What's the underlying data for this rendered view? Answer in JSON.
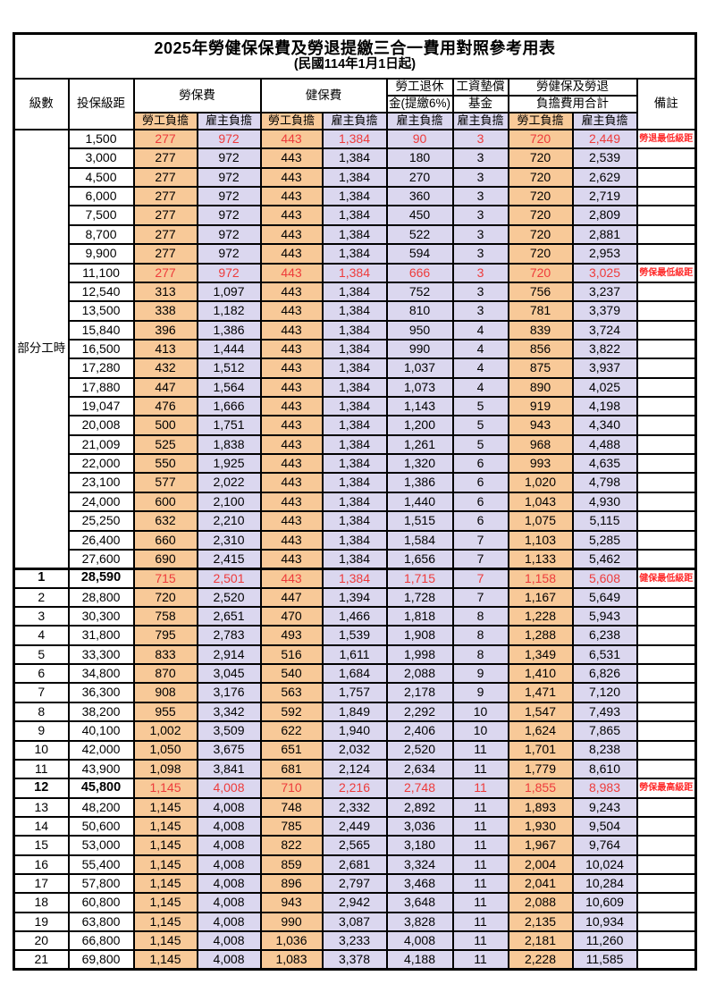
{
  "title": "2025年勞健保保費及勞退提繳三合一費用對照參考用表",
  "subtitle": "(民國114年1月1日起)",
  "colors": {
    "employee_share_fill": "#F8C998",
    "employer_share_fill": "#DBD7EF",
    "highlight_value_text": "#EE3B3B",
    "remark_text": "#FF2B2B",
    "border": "#000000"
  },
  "header": {
    "level": "級數",
    "bracket": "投保級距",
    "labor_insurance": "勞保費",
    "health_insurance": "健保費",
    "pension_line1": "勞工退休",
    "pension_line2": "金(提繳6%)",
    "wage_fund_line1": "工資墊償",
    "wage_fund_line2": "基金",
    "total_line1": "勞健保及勞退",
    "total_line2": "負擔費用合計",
    "remark": "備註",
    "employee": "勞工負擔",
    "employer": "雇主負擔"
  },
  "group_label": "部分工時",
  "group_rowspan": 23,
  "rows": [
    {
      "b": "1,500",
      "v": [
        "277",
        "972",
        "443",
        "1,384",
        "90",
        "3",
        "720",
        "2,449"
      ],
      "rm": "勞退最低級距",
      "red": true
    },
    {
      "b": "3,000",
      "v": [
        "277",
        "972",
        "443",
        "1,384",
        "180",
        "3",
        "720",
        "2,539"
      ]
    },
    {
      "b": "4,500",
      "v": [
        "277",
        "972",
        "443",
        "1,384",
        "270",
        "3",
        "720",
        "2,629"
      ]
    },
    {
      "b": "6,000",
      "v": [
        "277",
        "972",
        "443",
        "1,384",
        "360",
        "3",
        "720",
        "2,719"
      ]
    },
    {
      "b": "7,500",
      "v": [
        "277",
        "972",
        "443",
        "1,384",
        "450",
        "3",
        "720",
        "2,809"
      ]
    },
    {
      "b": "8,700",
      "v": [
        "277",
        "972",
        "443",
        "1,384",
        "522",
        "3",
        "720",
        "2,881"
      ]
    },
    {
      "b": "9,900",
      "v": [
        "277",
        "972",
        "443",
        "1,384",
        "594",
        "3",
        "720",
        "2,953"
      ]
    },
    {
      "b": "11,100",
      "v": [
        "277",
        "972",
        "443",
        "1,384",
        "666",
        "3",
        "720",
        "3,025"
      ],
      "rm": "勞保最低級距",
      "red": true
    },
    {
      "b": "12,540",
      "v": [
        "313",
        "1,097",
        "443",
        "1,384",
        "752",
        "3",
        "756",
        "3,237"
      ]
    },
    {
      "b": "13,500",
      "v": [
        "338",
        "1,182",
        "443",
        "1,384",
        "810",
        "3",
        "781",
        "3,379"
      ]
    },
    {
      "b": "15,840",
      "v": [
        "396",
        "1,386",
        "443",
        "1,384",
        "950",
        "4",
        "839",
        "3,724"
      ]
    },
    {
      "b": "16,500",
      "v": [
        "413",
        "1,444",
        "443",
        "1,384",
        "990",
        "4",
        "856",
        "3,822"
      ]
    },
    {
      "b": "17,280",
      "v": [
        "432",
        "1,512",
        "443",
        "1,384",
        "1,037",
        "4",
        "875",
        "3,937"
      ]
    },
    {
      "b": "17,880",
      "v": [
        "447",
        "1,564",
        "443",
        "1,384",
        "1,073",
        "4",
        "890",
        "4,025"
      ]
    },
    {
      "b": "19,047",
      "v": [
        "476",
        "1,666",
        "443",
        "1,384",
        "1,143",
        "5",
        "919",
        "4,198"
      ]
    },
    {
      "b": "20,008",
      "v": [
        "500",
        "1,751",
        "443",
        "1,384",
        "1,200",
        "5",
        "943",
        "4,340"
      ]
    },
    {
      "b": "21,009",
      "v": [
        "525",
        "1,838",
        "443",
        "1,384",
        "1,261",
        "5",
        "968",
        "4,488"
      ]
    },
    {
      "b": "22,000",
      "v": [
        "550",
        "1,925",
        "443",
        "1,384",
        "1,320",
        "6",
        "993",
        "4,635"
      ]
    },
    {
      "b": "23,100",
      "v": [
        "577",
        "2,022",
        "443",
        "1,384",
        "1,386",
        "6",
        "1,020",
        "4,798"
      ]
    },
    {
      "b": "24,000",
      "v": [
        "600",
        "2,100",
        "443",
        "1,384",
        "1,440",
        "6",
        "1,043",
        "4,930"
      ]
    },
    {
      "b": "25,250",
      "v": [
        "632",
        "2,210",
        "443",
        "1,384",
        "1,515",
        "6",
        "1,075",
        "5,115"
      ]
    },
    {
      "b": "26,400",
      "v": [
        "660",
        "2,310",
        "443",
        "1,384",
        "1,584",
        "7",
        "1,103",
        "5,285"
      ]
    },
    {
      "b": "27,600",
      "v": [
        "690",
        "2,415",
        "443",
        "1,384",
        "1,656",
        "7",
        "1,133",
        "5,462"
      ]
    },
    {
      "lv": "1",
      "b": "28,590",
      "v": [
        "715",
        "2,501",
        "443",
        "1,384",
        "1,715",
        "7",
        "1,158",
        "5,608"
      ],
      "rm": "健保最低級距",
      "red": true,
      "bold": true,
      "thick": true
    },
    {
      "lv": "2",
      "b": "28,800",
      "v": [
        "720",
        "2,520",
        "447",
        "1,394",
        "1,728",
        "7",
        "1,167",
        "5,649"
      ]
    },
    {
      "lv": "3",
      "b": "30,300",
      "v": [
        "758",
        "2,651",
        "470",
        "1,466",
        "1,818",
        "8",
        "1,228",
        "5,943"
      ]
    },
    {
      "lv": "4",
      "b": "31,800",
      "v": [
        "795",
        "2,783",
        "493",
        "1,539",
        "1,908",
        "8",
        "1,288",
        "6,238"
      ]
    },
    {
      "lv": "5",
      "b": "33,300",
      "v": [
        "833",
        "2,914",
        "516",
        "1,611",
        "1,998",
        "8",
        "1,349",
        "6,531"
      ]
    },
    {
      "lv": "6",
      "b": "34,800",
      "v": [
        "870",
        "3,045",
        "540",
        "1,684",
        "2,088",
        "9",
        "1,410",
        "6,826"
      ]
    },
    {
      "lv": "7",
      "b": "36,300",
      "v": [
        "908",
        "3,176",
        "563",
        "1,757",
        "2,178",
        "9",
        "1,471",
        "7,120"
      ]
    },
    {
      "lv": "8",
      "b": "38,200",
      "v": [
        "955",
        "3,342",
        "592",
        "1,849",
        "2,292",
        "10",
        "1,547",
        "7,493"
      ]
    },
    {
      "lv": "9",
      "b": "40,100",
      "v": [
        "1,002",
        "3,509",
        "622",
        "1,940",
        "2,406",
        "10",
        "1,624",
        "7,865"
      ]
    },
    {
      "lv": "10",
      "b": "42,000",
      "v": [
        "1,050",
        "3,675",
        "651",
        "2,032",
        "2,520",
        "11",
        "1,701",
        "8,238"
      ]
    },
    {
      "lv": "11",
      "b": "43,900",
      "v": [
        "1,098",
        "3,841",
        "681",
        "2,124",
        "2,634",
        "11",
        "1,779",
        "8,610"
      ]
    },
    {
      "lv": "12",
      "b": "45,800",
      "v": [
        "1,145",
        "4,008",
        "710",
        "2,216",
        "2,748",
        "11",
        "1,855",
        "8,983"
      ],
      "rm": "勞保最高級距",
      "red": true,
      "bold": true
    },
    {
      "lv": "13",
      "b": "48,200",
      "v": [
        "1,145",
        "4,008",
        "748",
        "2,332",
        "2,892",
        "11",
        "1,893",
        "9,243"
      ]
    },
    {
      "lv": "14",
      "b": "50,600",
      "v": [
        "1,145",
        "4,008",
        "785",
        "2,449",
        "3,036",
        "11",
        "1,930",
        "9,504"
      ]
    },
    {
      "lv": "15",
      "b": "53,000",
      "v": [
        "1,145",
        "4,008",
        "822",
        "2,565",
        "3,180",
        "11",
        "1,967",
        "9,764"
      ]
    },
    {
      "lv": "16",
      "b": "55,400",
      "v": [
        "1,145",
        "4,008",
        "859",
        "2,681",
        "3,324",
        "11",
        "2,004",
        "10,024"
      ]
    },
    {
      "lv": "17",
      "b": "57,800",
      "v": [
        "1,145",
        "4,008",
        "896",
        "2,797",
        "3,468",
        "11",
        "2,041",
        "10,284"
      ]
    },
    {
      "lv": "18",
      "b": "60,800",
      "v": [
        "1,145",
        "4,008",
        "943",
        "2,942",
        "3,648",
        "11",
        "2,088",
        "10,609"
      ]
    },
    {
      "lv": "19",
      "b": "63,800",
      "v": [
        "1,145",
        "4,008",
        "990",
        "3,087",
        "3,828",
        "11",
        "2,135",
        "10,934"
      ]
    },
    {
      "lv": "20",
      "b": "66,800",
      "v": [
        "1,145",
        "4,008",
        "1,036",
        "3,233",
        "4,008",
        "11",
        "2,181",
        "11,260"
      ]
    },
    {
      "lv": "21",
      "b": "69,800",
      "v": [
        "1,145",
        "4,008",
        "1,083",
        "3,378",
        "4,188",
        "11",
        "2,228",
        "11,585"
      ]
    }
  ]
}
